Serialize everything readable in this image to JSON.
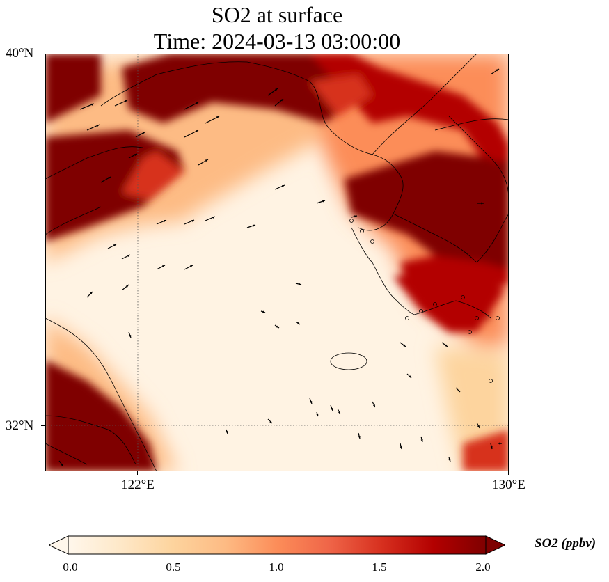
{
  "title": {
    "line1": "SO2 at surface",
    "line2": "Time: 2024-03-13 03:00:00"
  },
  "axes": {
    "lat_ticks": [
      {
        "value": 40,
        "label": "40°N"
      },
      {
        "value": 32,
        "label": "32°N"
      }
    ],
    "lon_ticks": [
      {
        "value": 122,
        "label": "122°E"
      },
      {
        "value": 130,
        "label": "130°E"
      }
    ],
    "lon_range": [
      120,
      130
    ],
    "lat_range": [
      31,
      40
    ]
  },
  "colorbar": {
    "label": "SO2 (ppbv)",
    "min": 0.0,
    "max": 2.0,
    "extend": "both",
    "colormap": "OrRd",
    "ticks": [
      "0.0",
      "0.5",
      "1.0",
      "1.5",
      "2.0"
    ],
    "colors": [
      "#fff7ec",
      "#fee8c8",
      "#fdd49e",
      "#fdbb84",
      "#fc8d59",
      "#ef6548",
      "#d7301f",
      "#b30000",
      "#7f0000"
    ]
  },
  "field_summary": {
    "variable": "SO2",
    "level": "surface",
    "high_regions": [
      "Shandong peninsula / north Yellow Sea coast",
      "North Korea east",
      "southwest Korean peninsula",
      "Jiangsu / Shanghai coast"
    ],
    "low_regions": [
      "Yellow Sea",
      "East China Sea near Jeju"
    ]
  },
  "wind_vectors": {
    "shown": true
  }
}
